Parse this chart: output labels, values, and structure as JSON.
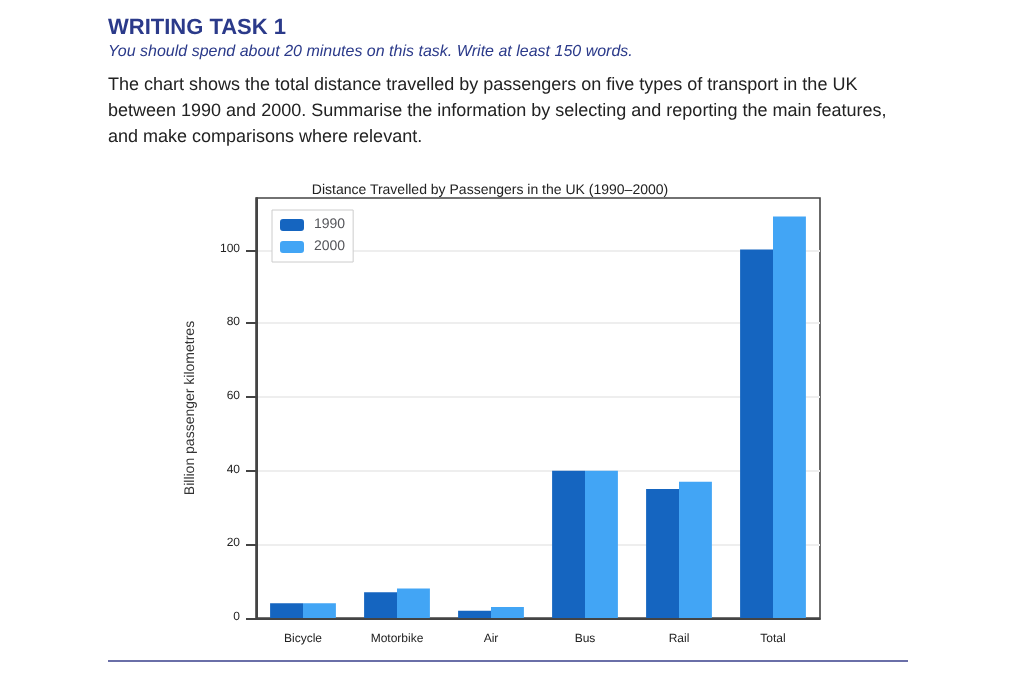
{
  "chart_data": {
    "type": "bar",
    "title": "Distance Travelled by Passengers in the UK (1990–2000)",
    "annotations": [
      "WRITING TASK 1",
      "You should spend about 20 minutes on this task. Write at least 150 words.",
      "The chart shows the total distance travelled by passengers on five types of transport in the UK between 1990 and 2000. Summarise the information by selecting and reporting the main features, and make comparisons where relevant."
    ],
    "ylabel": "Billion passenger kilometres",
    "categories": [
      "Bicycle",
      "Motorbike",
      "Air",
      "Bus",
      "Rail",
      "Total"
    ],
    "series": [
      {
        "name": "1990",
        "color": "#1565c0",
        "values": [
          4,
          7,
          2,
          40,
          35,
          100
        ]
      },
      {
        "name": "2000",
        "color": "#42a5f5",
        "values": [
          4,
          8,
          3,
          40,
          37,
          109
        ]
      }
    ],
    "ylim": [
      0,
      114
    ],
    "yticks": [
      0,
      20,
      40,
      60,
      80,
      100
    ],
    "grid": "y",
    "legend": "top left"
  }
}
